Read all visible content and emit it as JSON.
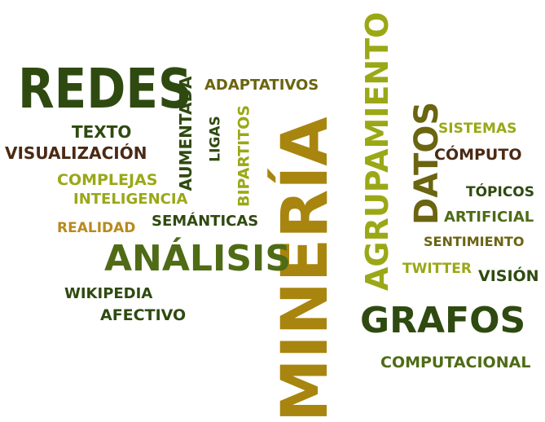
{
  "colors": {
    "dark_green": "#2f4a10",
    "olive_green": "#6b8a0c",
    "lime": "#9aa816",
    "gold": "#a8850f",
    "brown": "#4a2a14",
    "amber": "#b98a1c"
  },
  "words": [
    {
      "id": "mineria",
      "text": "MINERÍA",
      "color": "#a8850f"
    },
    {
      "id": "agrupamiento",
      "text": "AGRUPAMIENTO",
      "color": "#9aa816"
    },
    {
      "id": "redes",
      "text": "REDES",
      "color": "#2f4a10"
    },
    {
      "id": "analisis",
      "text": "ANÁLISIS",
      "color": "#4f6b16"
    },
    {
      "id": "grafos",
      "text": "GRAFOS",
      "color": "#2f4a10"
    },
    {
      "id": "datos",
      "text": "DATOS",
      "color": "#6b6410"
    },
    {
      "id": "aumentada",
      "text": "AUMENTADA",
      "color": "#2f4a10"
    },
    {
      "id": "ligas",
      "text": "LIGAS",
      "color": "#2f4a10"
    },
    {
      "id": "bipartitos",
      "text": "BIPARTITOS",
      "color": "#9aa816"
    },
    {
      "id": "adaptativos",
      "text": "ADAPTATIVOS",
      "color": "#6b6410"
    },
    {
      "id": "texto",
      "text": "TEXTO",
      "color": "#2f4a10"
    },
    {
      "id": "visualizacion",
      "text": "VISUALIZACIÓN",
      "color": "#4a2a14"
    },
    {
      "id": "complejas",
      "text": "COMPLEJAS",
      "color": "#9aa816"
    },
    {
      "id": "inteligencia",
      "text": "INTELIGENCIA",
      "color": "#9aa816"
    },
    {
      "id": "realidad",
      "text": "REALIDAD",
      "color": "#b98a1c"
    },
    {
      "id": "semanticas",
      "text": "SEMÁNTICAS",
      "color": "#2f4a10"
    },
    {
      "id": "wikipedia",
      "text": "WIKIPEDIA",
      "color": "#2f4a10"
    },
    {
      "id": "afectivo",
      "text": "AFECTIVO",
      "color": "#2f4a10"
    },
    {
      "id": "sistemas",
      "text": "SISTEMAS",
      "color": "#9aa816"
    },
    {
      "id": "computo",
      "text": "CÓMPUTO",
      "color": "#4a2a14"
    },
    {
      "id": "topicos",
      "text": "TÓPICOS",
      "color": "#2f4a10"
    },
    {
      "id": "artificial",
      "text": "ARTIFICIAL",
      "color": "#4f6b16"
    },
    {
      "id": "sentimiento",
      "text": "SENTIMIENTO",
      "color": "#6b6410"
    },
    {
      "id": "twitter",
      "text": "TWITTER",
      "color": "#9aa816"
    },
    {
      "id": "vision",
      "text": "VISIÓN",
      "color": "#2f4a10"
    },
    {
      "id": "computacional",
      "text": "COMPUTACIONAL",
      "color": "#4f6b16"
    }
  ]
}
